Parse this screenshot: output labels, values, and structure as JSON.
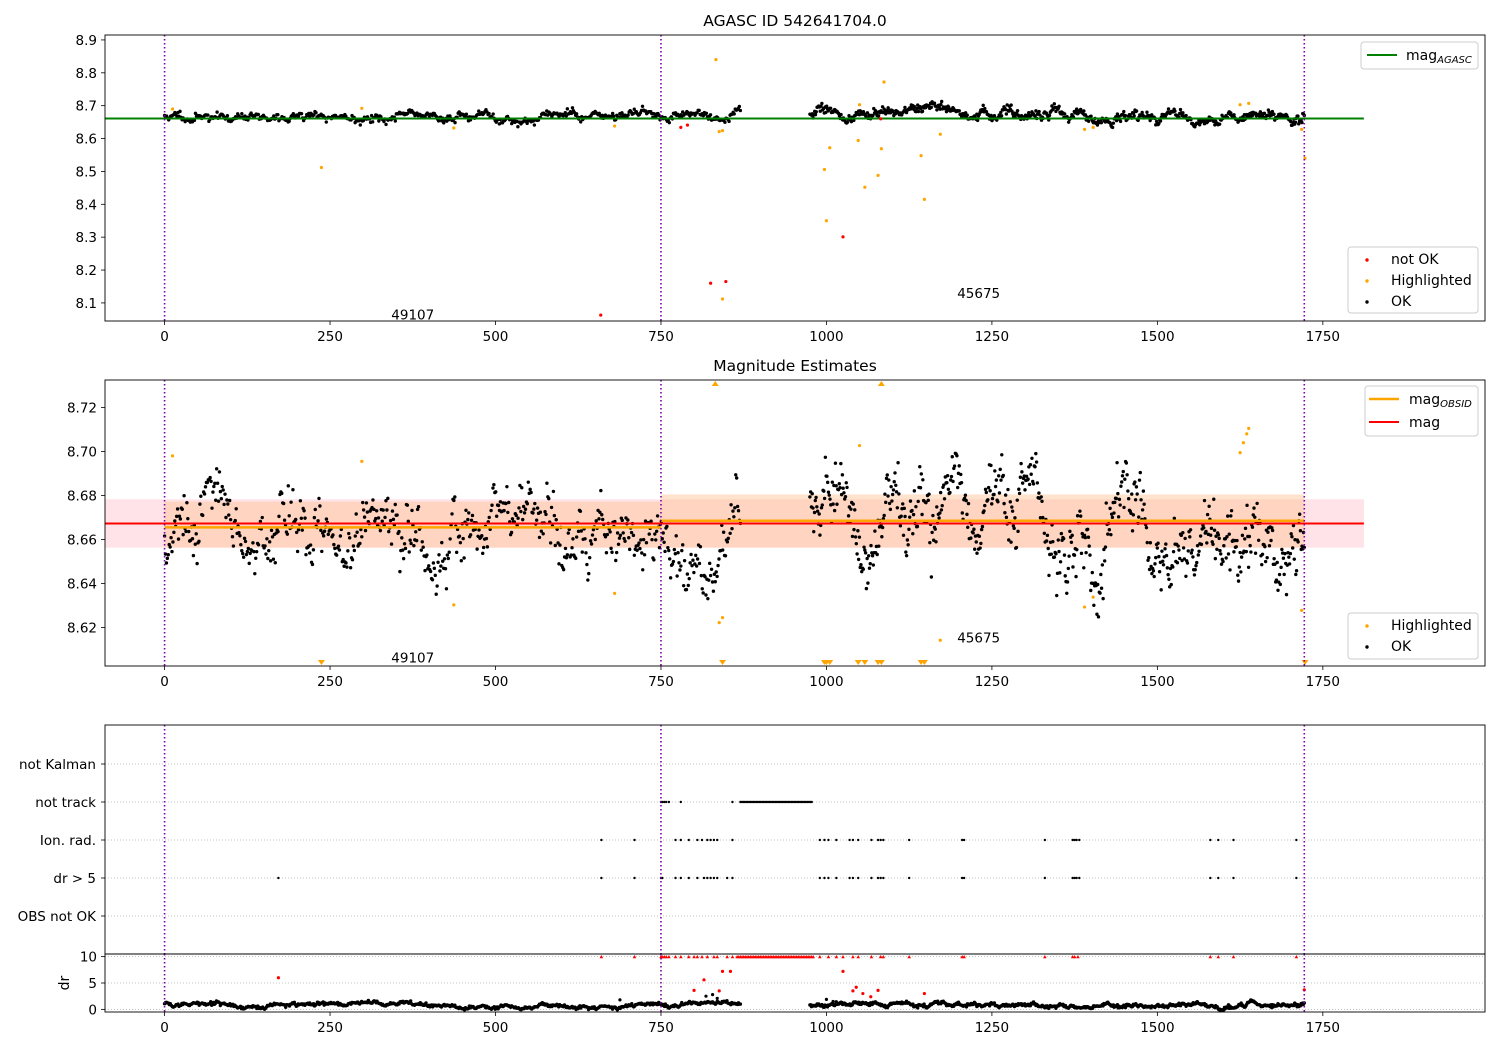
{
  "chart_data": [
    {
      "type": "scatter",
      "title": "AGASC ID 542641704.0",
      "xlim": [
        -90,
        1995
      ],
      "ylim": [
        8.045,
        8.915
      ],
      "xticks": [
        0,
        250,
        500,
        750,
        1000,
        1250,
        1500,
        1750
      ],
      "yticks": [
        8.1,
        8.2,
        8.3,
        8.4,
        8.5,
        8.6,
        8.7,
        8.8,
        8.9
      ],
      "obsid_boundaries": [
        0,
        750,
        1722
      ],
      "obsid_labels": [
        {
          "text": "49107",
          "x": 375,
          "y": 8.065
        },
        {
          "text": "45675",
          "x": 1230,
          "y": 8.13
        }
      ],
      "lines": [
        {
          "name": "mag_AGASC",
          "y": 8.661,
          "x_range": [
            -90,
            1812
          ],
          "color": "#008000"
        }
      ],
      "legend_top": [
        {
          "label": "mag",
          "sub": "AGASC",
          "color": "#008000"
        }
      ],
      "legend_bottom": [
        {
          "label": "not OK",
          "color": "#ff0000"
        },
        {
          "label": "Highlighted",
          "color": "#ffa500"
        },
        {
          "label": "OK",
          "color": "#000000"
        }
      ],
      "not_ok_points": [
        [
          659,
          8.063
        ],
        [
          780,
          8.634
        ],
        [
          790,
          8.641
        ],
        [
          825,
          8.16
        ],
        [
          848,
          8.165
        ],
        [
          1025,
          8.301
        ],
        [
          1082,
          8.66
        ]
      ],
      "highlighted_points": [
        [
          12,
          8.69
        ],
        [
          237,
          8.512
        ],
        [
          298,
          8.692
        ],
        [
          437,
          8.632
        ],
        [
          680,
          8.638
        ],
        [
          833,
          8.84
        ],
        [
          838,
          8.621
        ],
        [
          843,
          8.624
        ],
        [
          843,
          8.112
        ],
        [
          997,
          8.506
        ],
        [
          1000,
          8.35
        ],
        [
          1005,
          8.572
        ],
        [
          1048,
          8.594
        ],
        [
          1050,
          8.703
        ],
        [
          1058,
          8.452
        ],
        [
          1078,
          8.488
        ],
        [
          1083,
          8.569
        ],
        [
          1087,
          8.772
        ],
        [
          1143,
          8.548
        ],
        [
          1148,
          8.415
        ],
        [
          1172,
          8.613
        ],
        [
          1390,
          8.628
        ],
        [
          1403,
          8.634
        ],
        [
          1625,
          8.703
        ],
        [
          1638,
          8.707
        ],
        [
          1718,
          8.628
        ],
        [
          1723,
          8.54
        ]
      ],
      "ok_segments": [
        {
          "x0": 0,
          "x1": 870,
          "n": 560,
          "base": 8.666,
          "amp": 0.012,
          "seed": 11
        },
        {
          "x0": 975,
          "x1": 1722,
          "n": 620,
          "base": 8.668,
          "amp": 0.014,
          "seed": 29
        }
      ]
    },
    {
      "type": "scatter",
      "title": "Magnitude Estimates",
      "xlim": [
        -90,
        1995
      ],
      "ylim": [
        8.6025,
        8.7325
      ],
      "xticks": [
        0,
        250,
        500,
        750,
        1000,
        1250,
        1500,
        1750
      ],
      "yticks": [
        8.62,
        8.64,
        8.66,
        8.68,
        8.7,
        8.72
      ],
      "obsid_boundaries": [
        0,
        750,
        1722
      ],
      "obsid_labels": [
        {
          "text": "49107",
          "x": 375,
          "y": 8.6063
        },
        {
          "text": "45675",
          "x": 1230,
          "y": 8.6155
        }
      ],
      "mag": {
        "value": 8.6673,
        "band": [
          8.6563,
          8.6783
        ],
        "x_range": [
          -90,
          1812
        ],
        "color": "#ff0000",
        "band_color": "#ffc0cb"
      },
      "mag_obsid": [
        {
          "x0": 0,
          "x1": 750,
          "value": 8.6655,
          "band": [
            8.6563,
            8.6772
          ]
        },
        {
          "x0": 750,
          "x1": 1722,
          "value": 8.6685,
          "band": [
            8.6563,
            8.6805
          ]
        }
      ],
      "legend_top": [
        {
          "label": "mag",
          "sub": "OBSID",
          "color": "#ffa500"
        },
        {
          "label": "mag",
          "sub": "",
          "color": "#ff0000"
        }
      ],
      "legend_bottom": [
        {
          "label": "Highlighted",
          "color": "#ffa500"
        },
        {
          "label": "OK",
          "color": "#000000"
        }
      ],
      "highlighted_points": [
        [
          12,
          8.698
        ],
        [
          298,
          8.6955
        ],
        [
          437,
          8.6303
        ],
        [
          680,
          8.6355
        ],
        [
          838,
          8.6222
        ],
        [
          843,
          8.6245
        ],
        [
          1050,
          8.7027
        ],
        [
          1172,
          8.6142
        ],
        [
          1390,
          8.6293
        ],
        [
          1403,
          8.6338
        ],
        [
          1625,
          8.6995
        ],
        [
          1630,
          8.704
        ],
        [
          1635,
          8.708
        ],
        [
          1638,
          8.7105
        ],
        [
          1718,
          8.6278
        ]
      ],
      "up_markers": [
        832,
        1083
      ],
      "down_markers": [
        237,
        843,
        997,
        1000,
        1005,
        1048,
        1058,
        1078,
        1083,
        1143,
        1148,
        1723
      ],
      "ok_segments": [
        {
          "x0": 0,
          "x1": 870,
          "n": 620,
          "base": 8.666,
          "amp": 0.012,
          "seed": 13
        },
        {
          "x0": 975,
          "x1": 1722,
          "n": 640,
          "base": 8.668,
          "amp": 0.014,
          "seed": 31
        }
      ]
    },
    {
      "type": "scatter",
      "title": "",
      "xlim": [
        -90,
        1995
      ],
      "categories": [
        "not Kalman",
        "not track",
        "Ion. rad.",
        "dr > 5",
        "OBS not OK"
      ],
      "obsid_boundaries": [
        0,
        750,
        1722
      ],
      "flag_points": {
        "not track": {
          "singles": [
            750,
            752,
            755,
            758,
            762,
            780,
            858
          ],
          "range": [
            870,
            980,
            2.2
          ]
        },
        "Ion. rad.": {
          "singles": [
            660,
            710,
            772,
            780,
            792,
            805,
            812,
            820,
            825,
            830,
            835,
            858,
            990,
            997,
            1003,
            1015,
            1035,
            1040,
            1048,
            1068,
            1078,
            1082,
            1086,
            1125,
            1205,
            1208,
            1330,
            1372,
            1375,
            1378,
            1382,
            1580,
            1592,
            1615,
            1710
          ]
        },
        "dr > 5": {
          "singles": [
            172,
            660,
            710,
            750,
            752,
            772,
            780,
            792,
            805,
            815,
            820,
            825,
            830,
            835,
            850,
            858,
            990,
            997,
            1003,
            1015,
            1035,
            1040,
            1048,
            1068,
            1078,
            1082,
            1086,
            1125,
            1205,
            1208,
            1330,
            1372,
            1375,
            1378,
            1382,
            1580,
            1592,
            1615,
            1710
          ]
        }
      }
    },
    {
      "type": "scatter",
      "title": "",
      "ylabel": "dr",
      "xlim": [
        -90,
        1995
      ],
      "ylim": [
        -0.5,
        10.5
      ],
      "yticks": [
        0,
        5,
        10
      ],
      "xticks": [
        0,
        250,
        500,
        750,
        1000,
        1250,
        1500,
        1750
      ],
      "obsid_boundaries": [
        0,
        750,
        1722
      ],
      "clipped_at_10": {
        "singles": [
          660,
          710,
          750,
          752,
          755,
          758,
          762,
          772,
          780,
          792,
          800,
          805,
          812,
          820,
          830,
          835,
          850,
          858,
          990,
          1003,
          1015,
          1025,
          1040,
          1048,
          1068,
          1082,
          1086,
          1125,
          1205,
          1208,
          1330,
          1372,
          1375,
          1380,
          1580,
          1592,
          1615,
          1710
        ],
        "range": [
          865,
          980,
          2.5
        ]
      },
      "outliers_red": [
        [
          172,
          6
        ],
        [
          800,
          3.6
        ],
        [
          815,
          5.6
        ],
        [
          838,
          3.5
        ],
        [
          843,
          7.2
        ],
        [
          855,
          7.2
        ],
        [
          1025,
          7.2
        ],
        [
          1040,
          3.5
        ],
        [
          1045,
          4.2
        ],
        [
          1055,
          3.0
        ],
        [
          1067,
          2.4
        ],
        [
          1078,
          3.6
        ],
        [
          1148,
          3.0
        ],
        [
          1722,
          3.7
        ]
      ],
      "outliers_black": [
        [
          688,
          1.8
        ],
        [
          738,
          1.2
        ],
        [
          818,
          2.5
        ],
        [
          828,
          2.8
        ],
        [
          835,
          2.1
        ],
        [
          1000,
          1.9
        ],
        [
          1010,
          1.5
        ]
      ],
      "ok_segments": [
        {
          "x0": 0,
          "x1": 870,
          "n": 600,
          "base": 0.8,
          "amp": 0.35,
          "seed": 7
        },
        {
          "x0": 975,
          "x1": 1722,
          "n": 620,
          "base": 0.8,
          "amp": 0.35,
          "seed": 17
        }
      ]
    }
  ]
}
